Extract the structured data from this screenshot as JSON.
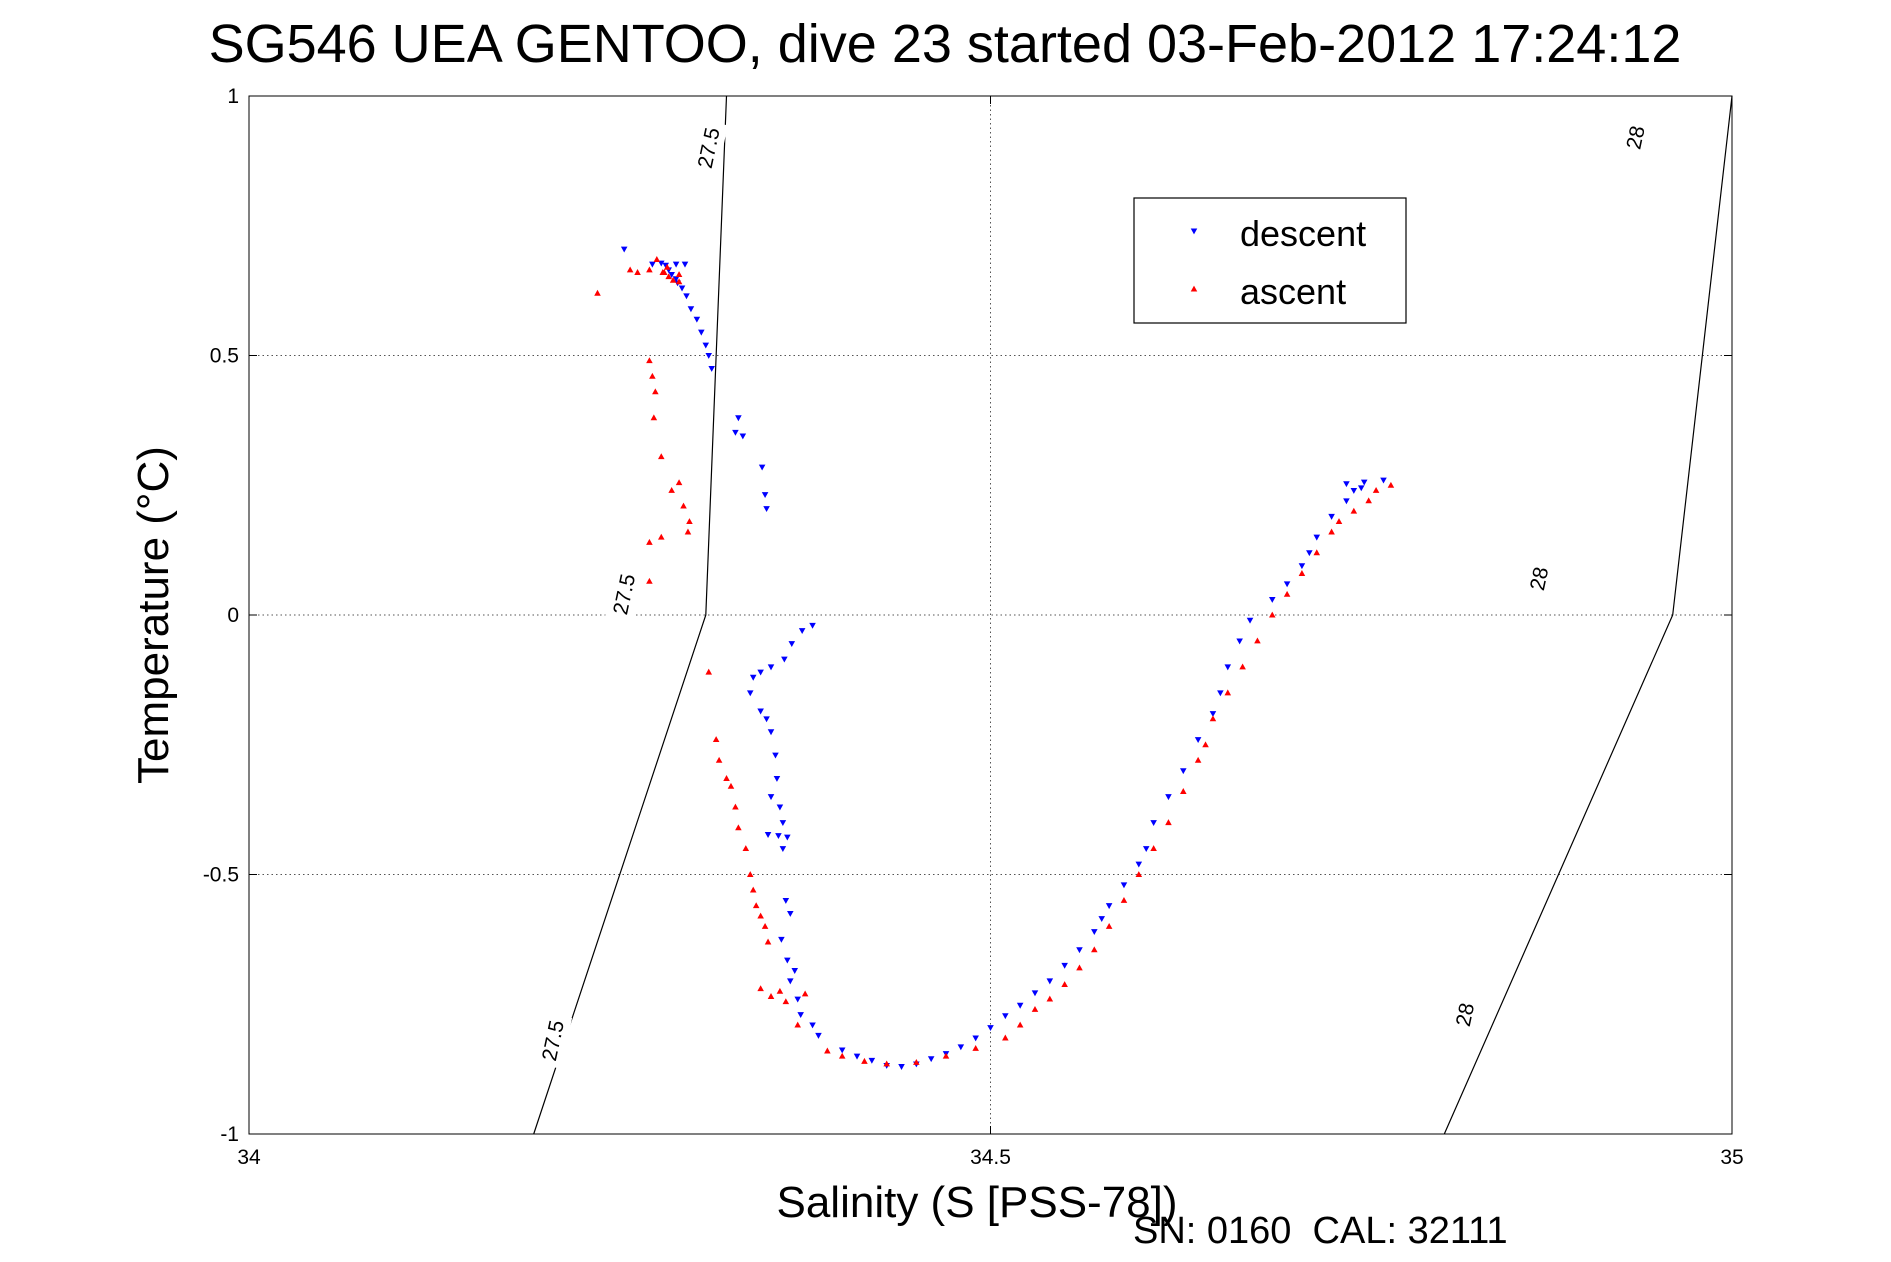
{
  "chart_data": {
    "type": "scatter",
    "title": "SG546 UEA GENTOO, dive 23 started 03-Feb-2012 17:24:12",
    "xlabel": "Salinity (S [PSS-78])",
    "ylabel": "Temperature (°C)",
    "footnote": "SN: 0160  CAL: 32111",
    "xlim": [
      34,
      35
    ],
    "ylim": [
      -1,
      1
    ],
    "xticks": [
      34,
      34.5,
      35
    ],
    "xtick_labels": [
      "34",
      "34.5",
      "35"
    ],
    "yticks": [
      -1,
      -0.5,
      0,
      0.5,
      1
    ],
    "ytick_labels": [
      "-1",
      "-0.5",
      "0",
      "0.5",
      "1"
    ],
    "grid": true,
    "legend_position": "top-right",
    "isopycnals": [
      {
        "label": "27.5",
        "points": [
          [
            34.192,
            -1.0
          ],
          [
            34.308,
            0.0
          ],
          [
            34.322,
            1.0
          ]
        ],
        "label_positions": [
          [
            34.205,
            -0.82
          ],
          [
            34.253,
            0.04
          ],
          [
            34.31,
            0.9
          ]
        ]
      },
      {
        "label": "28",
        "points": [
          [
            34.806,
            -1.0
          ],
          [
            34.96,
            0.0
          ],
          [
            35.0,
            1.0
          ]
        ],
        "label_positions": [
          [
            34.82,
            -0.77
          ],
          [
            34.87,
            0.07
          ],
          [
            34.935,
            0.92
          ]
        ]
      }
    ],
    "series": [
      {
        "name": "descent",
        "color": "#0000ff",
        "marker": "triangle-down",
        "points": [
          [
            34.253,
            0.705
          ],
          [
            34.272,
            0.676
          ],
          [
            34.278,
            0.678
          ],
          [
            34.281,
            0.674
          ],
          [
            34.288,
            0.676
          ],
          [
            34.294,
            0.676
          ],
          [
            34.283,
            0.665
          ],
          [
            34.285,
            0.656
          ],
          [
            34.288,
            0.648
          ],
          [
            34.289,
            0.64
          ],
          [
            34.292,
            0.63
          ],
          [
            34.295,
            0.615
          ],
          [
            34.298,
            0.59
          ],
          [
            34.302,
            0.57
          ],
          [
            34.305,
            0.545
          ],
          [
            34.308,
            0.52
          ],
          [
            34.31,
            0.5
          ],
          [
            34.312,
            0.475
          ],
          [
            34.33,
            0.38
          ],
          [
            34.328,
            0.352
          ],
          [
            34.333,
            0.345
          ],
          [
            34.346,
            0.285
          ],
          [
            34.348,
            0.232
          ],
          [
            34.349,
            0.205
          ],
          [
            34.38,
            -0.02
          ],
          [
            34.373,
            -0.03
          ],
          [
            34.366,
            -0.055
          ],
          [
            34.361,
            -0.085
          ],
          [
            34.352,
            -0.1
          ],
          [
            34.345,
            -0.11
          ],
          [
            34.34,
            -0.12
          ],
          [
            34.338,
            -0.15
          ],
          [
            34.345,
            -0.185
          ],
          [
            34.349,
            -0.2
          ],
          [
            34.352,
            -0.225
          ],
          [
            34.355,
            -0.27
          ],
          [
            34.356,
            -0.315
          ],
          [
            34.352,
            -0.35
          ],
          [
            34.358,
            -0.37
          ],
          [
            34.36,
            -0.4
          ],
          [
            34.35,
            -0.423
          ],
          [
            34.357,
            -0.425
          ],
          [
            34.363,
            -0.428
          ],
          [
            34.36,
            -0.45
          ],
          [
            34.362,
            -0.55
          ],
          [
            34.365,
            -0.575
          ],
          [
            34.359,
            -0.625
          ],
          [
            34.363,
            -0.665
          ],
          [
            34.368,
            -0.685
          ],
          [
            34.365,
            -0.705
          ],
          [
            34.37,
            -0.74
          ],
          [
            34.372,
            -0.77
          ],
          [
            34.38,
            -0.79
          ],
          [
            34.384,
            -0.81
          ],
          [
            34.4,
            -0.838
          ],
          [
            34.41,
            -0.85
          ],
          [
            34.42,
            -0.858
          ],
          [
            34.43,
            -0.868
          ],
          [
            34.44,
            -0.87
          ],
          [
            34.45,
            -0.865
          ],
          [
            34.46,
            -0.855
          ],
          [
            34.47,
            -0.845
          ],
          [
            34.48,
            -0.832
          ],
          [
            34.49,
            -0.815
          ],
          [
            34.5,
            -0.795
          ],
          [
            34.51,
            -0.772
          ],
          [
            34.52,
            -0.752
          ],
          [
            34.53,
            -0.728
          ],
          [
            34.54,
            -0.705
          ],
          [
            34.55,
            -0.675
          ],
          [
            34.56,
            -0.645
          ],
          [
            34.57,
            -0.61
          ],
          [
            34.575,
            -0.585
          ],
          [
            34.58,
            -0.56
          ],
          [
            34.59,
            -0.52
          ],
          [
            34.6,
            -0.48
          ],
          [
            34.605,
            -0.45
          ],
          [
            34.61,
            -0.4
          ],
          [
            34.62,
            -0.35
          ],
          [
            34.63,
            -0.3
          ],
          [
            34.64,
            -0.24
          ],
          [
            34.65,
            -0.19
          ],
          [
            34.655,
            -0.15
          ],
          [
            34.66,
            -0.1
          ],
          [
            34.668,
            -0.05
          ],
          [
            34.675,
            -0.01
          ],
          [
            34.69,
            0.03
          ],
          [
            34.7,
            0.06
          ],
          [
            34.71,
            0.095
          ],
          [
            34.715,
            0.12
          ],
          [
            34.72,
            0.15
          ],
          [
            34.73,
            0.19
          ],
          [
            34.74,
            0.22
          ],
          [
            34.75,
            0.245
          ],
          [
            34.765,
            0.26
          ],
          [
            34.74,
            0.253
          ],
          [
            34.745,
            0.24
          ],
          [
            34.752,
            0.256
          ]
        ]
      },
      {
        "name": "ascent",
        "color": "#ff0000",
        "marker": "triangle-up",
        "points": [
          [
            34.235,
            0.62
          ],
          [
            34.257,
            0.665
          ],
          [
            34.262,
            0.66
          ],
          [
            34.27,
            0.665
          ],
          [
            34.275,
            0.685
          ],
          [
            34.282,
            0.67
          ],
          [
            34.28,
            0.66
          ],
          [
            34.283,
            0.652
          ],
          [
            34.286,
            0.645
          ],
          [
            34.29,
            0.642
          ],
          [
            34.29,
            0.656
          ],
          [
            34.279,
            0.66
          ],
          [
            34.27,
            0.49
          ],
          [
            34.272,
            0.46
          ],
          [
            34.274,
            0.43
          ],
          [
            34.273,
            0.38
          ],
          [
            34.278,
            0.305
          ],
          [
            34.285,
            0.24
          ],
          [
            34.29,
            0.255
          ],
          [
            34.293,
            0.21
          ],
          [
            34.297,
            0.18
          ],
          [
            34.296,
            0.16
          ],
          [
            34.278,
            0.15
          ],
          [
            34.27,
            0.14
          ],
          [
            34.27,
            0.065
          ],
          [
            34.31,
            -0.11
          ],
          [
            34.315,
            -0.24
          ],
          [
            34.317,
            -0.28
          ],
          [
            34.322,
            -0.315
          ],
          [
            34.325,
            -0.33
          ],
          [
            34.328,
            -0.37
          ],
          [
            34.33,
            -0.41
          ],
          [
            34.335,
            -0.45
          ],
          [
            34.338,
            -0.5
          ],
          [
            34.34,
            -0.53
          ],
          [
            34.342,
            -0.56
          ],
          [
            34.345,
            -0.58
          ],
          [
            34.348,
            -0.6
          ],
          [
            34.35,
            -0.63
          ],
          [
            34.345,
            -0.72
          ],
          [
            34.352,
            -0.735
          ],
          [
            34.358,
            -0.725
          ],
          [
            34.362,
            -0.745
          ],
          [
            34.37,
            -0.79
          ],
          [
            34.375,
            -0.73
          ],
          [
            34.39,
            -0.84
          ],
          [
            34.4,
            -0.85
          ],
          [
            34.415,
            -0.86
          ],
          [
            34.43,
            -0.865
          ],
          [
            34.45,
            -0.862
          ],
          [
            34.47,
            -0.85
          ],
          [
            34.49,
            -0.835
          ],
          [
            34.51,
            -0.815
          ],
          [
            34.52,
            -0.79
          ],
          [
            34.53,
            -0.76
          ],
          [
            34.54,
            -0.74
          ],
          [
            34.55,
            -0.712
          ],
          [
            34.56,
            -0.68
          ],
          [
            34.57,
            -0.645
          ],
          [
            34.58,
            -0.6
          ],
          [
            34.59,
            -0.55
          ],
          [
            34.6,
            -0.5
          ],
          [
            34.61,
            -0.45
          ],
          [
            34.62,
            -0.4
          ],
          [
            34.63,
            -0.34
          ],
          [
            34.64,
            -0.28
          ],
          [
            34.645,
            -0.25
          ],
          [
            34.65,
            -0.2
          ],
          [
            34.66,
            -0.15
          ],
          [
            34.67,
            -0.1
          ],
          [
            34.68,
            -0.05
          ],
          [
            34.69,
            0.0
          ],
          [
            34.7,
            0.04
          ],
          [
            34.71,
            0.08
          ],
          [
            34.72,
            0.12
          ],
          [
            34.73,
            0.16
          ],
          [
            34.735,
            0.18
          ],
          [
            34.745,
            0.2
          ],
          [
            34.755,
            0.22
          ],
          [
            34.76,
            0.24
          ],
          [
            34.77,
            0.25
          ]
        ]
      }
    ]
  }
}
